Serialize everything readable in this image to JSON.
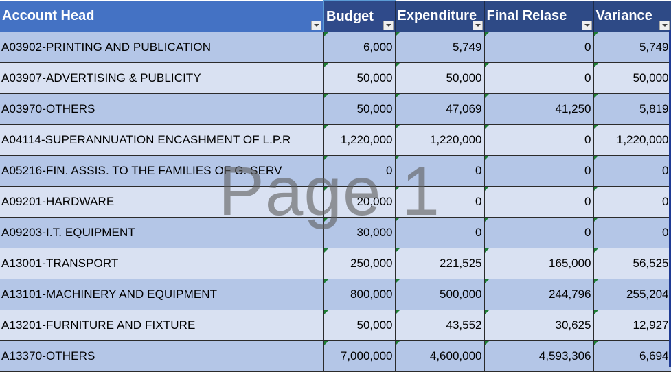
{
  "table": {
    "headers": [
      "Account Head",
      "Budget",
      "Expenditure",
      "Final Relase",
      "Variance"
    ],
    "rows": [
      {
        "head": "A03902-PRINTING AND PUBLICATION",
        "budget": "6,000",
        "expenditure": "5,749",
        "final_release": "0",
        "variance": "5,749"
      },
      {
        "head": "A03907-ADVERTISING & PUBLICITY",
        "budget": "50,000",
        "expenditure": "50,000",
        "final_release": "0",
        "variance": "50,000"
      },
      {
        "head": "A03970-OTHERS",
        "budget": "50,000",
        "expenditure": "47,069",
        "final_release": "41,250",
        "variance": "5,819"
      },
      {
        "head": "A04114-SUPERANNUATION ENCASHMENT OF L.P.R",
        "budget": "1,220,000",
        "expenditure": "1,220,000",
        "final_release": "0",
        "variance": "1,220,000"
      },
      {
        "head": "A05216-FIN. ASSIS. TO THE FAMILIES OF G. SERV",
        "budget": "0",
        "expenditure": "0",
        "final_release": "0",
        "variance": "0"
      },
      {
        "head": "A09201-HARDWARE",
        "budget": "20,000",
        "expenditure": "0",
        "final_release": "0",
        "variance": "0"
      },
      {
        "head": "A09203-I.T. EQUIPMENT",
        "budget": "30,000",
        "expenditure": "0",
        "final_release": "0",
        "variance": "0"
      },
      {
        "head": "A13001-TRANSPORT",
        "budget": "250,000",
        "expenditure": "221,525",
        "final_release": "165,000",
        "variance": "56,525"
      },
      {
        "head": "A13101-MACHINERY AND EQUIPMENT",
        "budget": "800,000",
        "expenditure": "500,000",
        "final_release": "244,796",
        "variance": "255,204"
      },
      {
        "head": "A13201-FURNITURE AND FIXTURE",
        "budget": "50,000",
        "expenditure": "43,552",
        "final_release": "30,625",
        "variance": "12,927"
      },
      {
        "head": "A13370-OTHERS",
        "budget": "7,000,000",
        "expenditure": "4,600,000",
        "final_release": "4,593,306",
        "variance": "6,694"
      }
    ]
  },
  "watermark": "Page 1",
  "colors": {
    "header_blue": "#4472c4",
    "header_dark": "#2e4a86",
    "row_band_dark": "#b4c6e7",
    "row_band_light": "#d9e1f2",
    "error_triangle": "#1e7e34"
  },
  "icons": {
    "filter": "dropdown-filter-icon"
  }
}
